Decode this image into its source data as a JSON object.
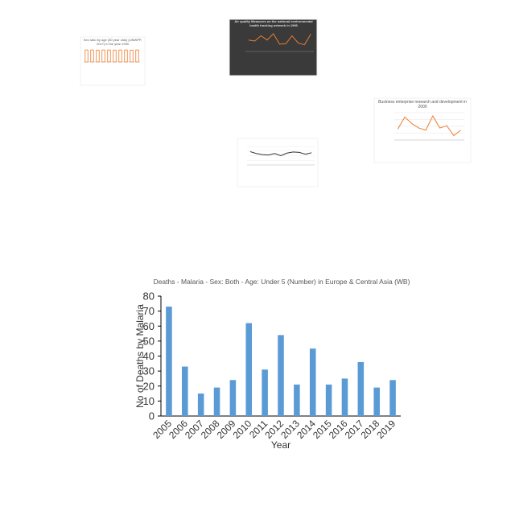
{
  "chart_data": [
    {
      "type": "bar",
      "title": "Sex ratio by age (30 year olds) (UNWPP, 2017) in the year 1990",
      "values": [
        1.05,
        1.05,
        1.04,
        1.05,
        1.05,
        1.04,
        1.05,
        1.05,
        1.04,
        1.05
      ],
      "color": "#ed7d31",
      "ylim": [
        0,
        1.2
      ]
    },
    {
      "type": "line",
      "title": "Air quality Measures on the national environmental health tracking network in 1999",
      "values": [
        2.2,
        2.0,
        3.0,
        2.2,
        3.4,
        1.4,
        1.5,
        3.0,
        1.6,
        1.3,
        3.3
      ],
      "color": "#ed7d31",
      "ylim": [
        0,
        4
      ]
    },
    {
      "type": "line",
      "title": "Business enterprise research and development in 2000",
      "values": [
        2.0,
        4.2,
        3.0,
        2.2,
        1.8,
        4.4,
        2.2,
        2.6,
        0.8,
        1.8
      ],
      "color": "#ed7d31",
      "ylim": [
        0,
        5
      ]
    },
    {
      "type": "line",
      "values": [
        3.6,
        3.1,
        2.8,
        2.7,
        3.1,
        2.5,
        3.2,
        3.5,
        3.4,
        2.9,
        3.3
      ],
      "color": "#333333",
      "ylim": [
        0,
        5
      ]
    },
    {
      "type": "bar",
      "title": "Deaths - Malaria - Sex: Both - Age: Under 5 (Number) in Europe & Central Asia (WB)",
      "x_label": "Year",
      "y_label": "No of Deaths by Malaria",
      "categories": [
        "2005",
        "2006",
        "2007",
        "2008",
        "2009",
        "2010",
        "2011",
        "2012",
        "2013",
        "2014",
        "2015",
        "2016",
        "2017",
        "2018",
        "2019"
      ],
      "values": [
        73,
        33,
        15,
        19,
        24,
        62,
        31,
        54,
        21,
        45,
        21,
        25,
        36,
        19,
        24
      ],
      "color": "#5b9bd5",
      "ylim": [
        0,
        80
      ],
      "yticks": [
        0,
        10,
        20,
        30,
        40,
        50,
        60,
        70,
        80
      ],
      "grid": false
    }
  ]
}
